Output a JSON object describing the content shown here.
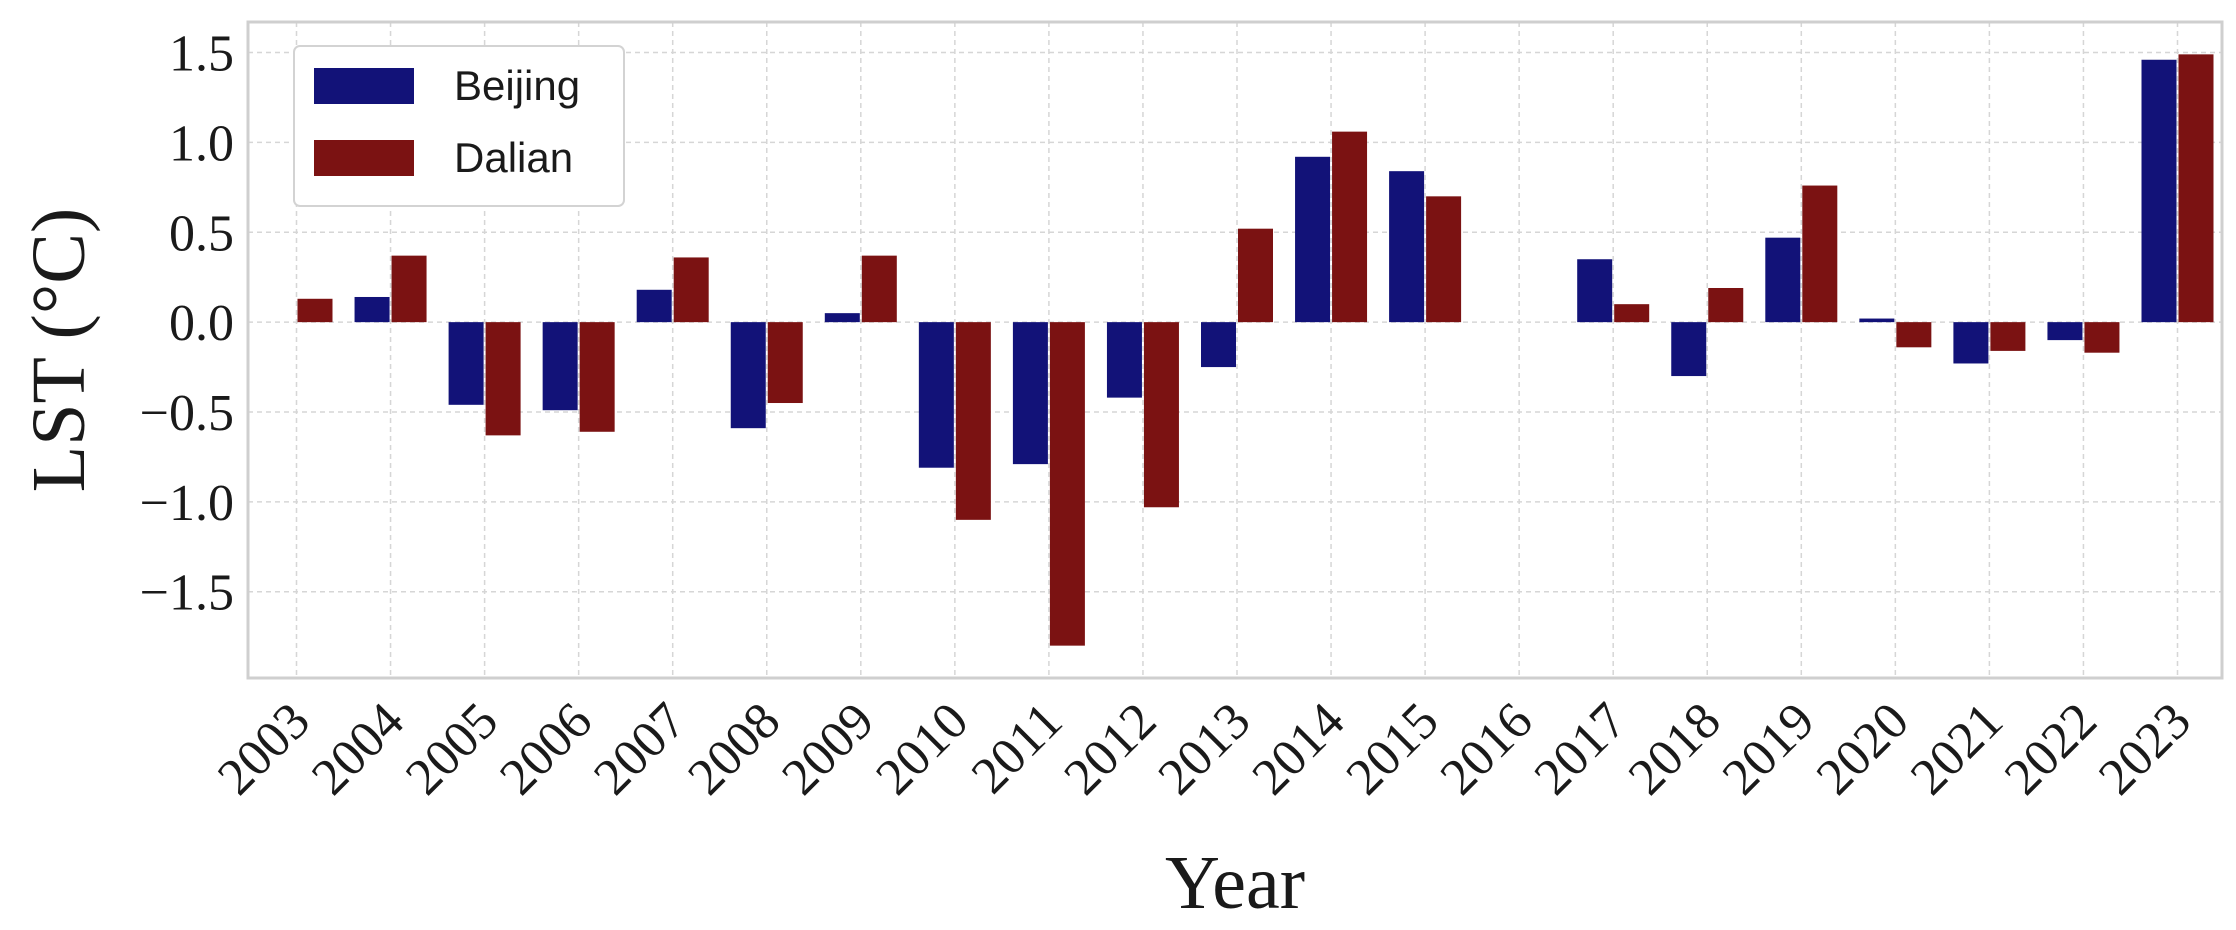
{
  "chart_data": {
    "type": "bar",
    "title": "",
    "xlabel": "Year",
    "ylabel": "LST (°C)",
    "categories": [
      "2003",
      "2004",
      "2005",
      "2006",
      "2007",
      "2008",
      "2009",
      "2010",
      "2011",
      "2012",
      "2013",
      "2014",
      "2015",
      "2016",
      "2017",
      "2018",
      "2019",
      "2020",
      "2021",
      "2022",
      "2023"
    ],
    "series": [
      {
        "name": "Beijing",
        "color": "#121278",
        "values": [
          0.0,
          0.14,
          -0.46,
          -0.49,
          0.18,
          -0.59,
          0.05,
          -0.81,
          -0.79,
          -0.42,
          -0.25,
          0.92,
          0.84,
          0.0,
          0.35,
          -0.3,
          0.47,
          0.02,
          -0.23,
          -0.1,
          1.46
        ]
      },
      {
        "name": "Dalian",
        "color": "#7b1212",
        "values": [
          0.13,
          0.37,
          -0.63,
          -0.61,
          0.36,
          -0.45,
          0.37,
          -1.1,
          -1.8,
          -1.03,
          0.52,
          1.06,
          0.7,
          0.0,
          0.1,
          0.19,
          0.76,
          -0.14,
          -0.16,
          -0.17,
          1.49
        ]
      }
    ],
    "yticks": [
      "1.5",
      "1.0",
      "0.5",
      "0.0",
      "−0.5",
      "−1.0",
      "−1.5"
    ],
    "ytick_values": [
      1.5,
      1.0,
      0.5,
      0.0,
      -0.5,
      -1.0,
      -1.5
    ],
    "ylim": [
      -1.98,
      1.67
    ],
    "grid": true,
    "legend_position": "top-left"
  }
}
